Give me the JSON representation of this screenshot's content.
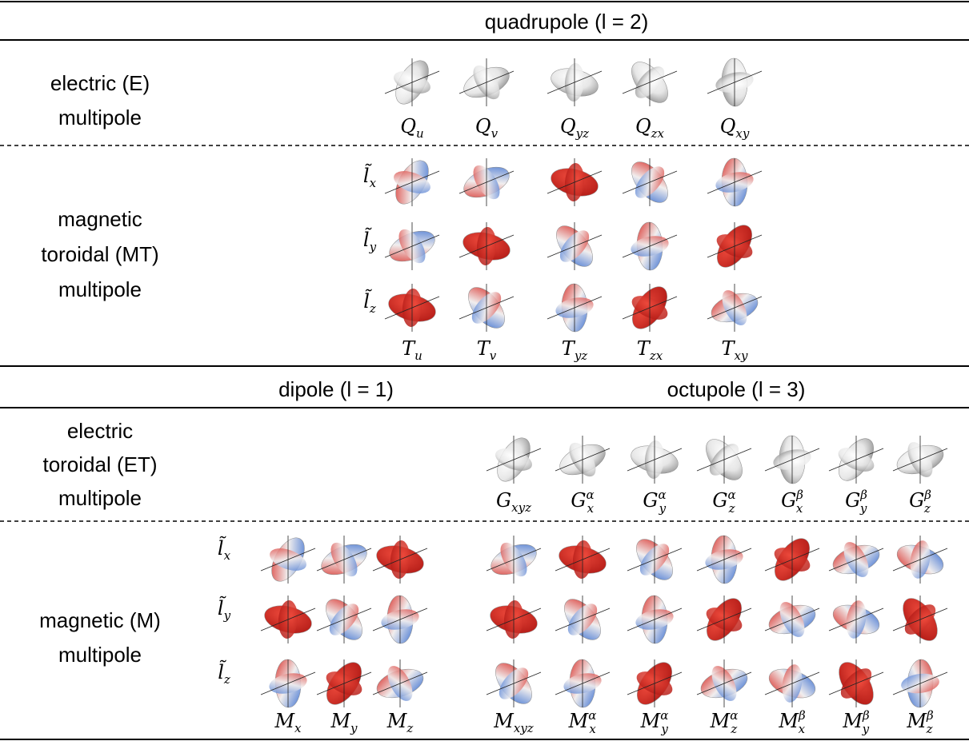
{
  "header": {
    "quadrupole": "quadrupole (l = 2)",
    "dipole": "dipole (l = 1)",
    "octupole": "octupole (l = 3)"
  },
  "electric": {
    "label": [
      "electric (E)",
      "multipole"
    ],
    "symbols": [
      {
        "symbol": "Q",
        "sub": "u"
      },
      {
        "symbol": "Q",
        "sub": "v"
      },
      {
        "symbol": "Q",
        "sub": "yz"
      },
      {
        "symbol": "Q",
        "sub": "zx"
      },
      {
        "symbol": "Q",
        "sub": "xy"
      }
    ]
  },
  "magnetic_toroidal": {
    "label": [
      "magnetic",
      "toroidal (MT)",
      "multipole"
    ],
    "rows": [
      {
        "symbol": "l̃",
        "sub": "x"
      },
      {
        "symbol": "l̃",
        "sub": "y"
      },
      {
        "symbol": "l̃",
        "sub": "z"
      }
    ],
    "symbols": [
      {
        "symbol": "T",
        "sub": "u"
      },
      {
        "symbol": "T",
        "sub": "v"
      },
      {
        "symbol": "T",
        "sub": "yz"
      },
      {
        "symbol": "T",
        "sub": "zx"
      },
      {
        "symbol": "T",
        "sub": "xy"
      }
    ]
  },
  "electric_toroidal": {
    "label": [
      "electric",
      "toroidal (ET)",
      "multipole"
    ],
    "symbols": [
      {
        "symbol": "G",
        "sub": "xyz"
      },
      {
        "symbol": "G",
        "sub": "x",
        "sup": "α"
      },
      {
        "symbol": "G",
        "sub": "y",
        "sup": "α"
      },
      {
        "symbol": "G",
        "sub": "z",
        "sup": "α"
      },
      {
        "symbol": "G",
        "sub": "x",
        "sup": "β"
      },
      {
        "symbol": "G",
        "sub": "y",
        "sup": "β"
      },
      {
        "symbol": "G",
        "sub": "z",
        "sup": "β"
      }
    ]
  },
  "magnetic": {
    "label": [
      "magnetic (M)",
      "multipole"
    ],
    "rows": [
      {
        "symbol": "l̃",
        "sub": "x"
      },
      {
        "symbol": "l̃",
        "sub": "y"
      },
      {
        "symbol": "l̃",
        "sub": "z"
      }
    ],
    "dipole_symbols": [
      {
        "symbol": "M",
        "sub": "x"
      },
      {
        "symbol": "M",
        "sub": "y"
      },
      {
        "symbol": "M",
        "sub": "z"
      }
    ],
    "octupole_symbols": [
      {
        "symbol": "M",
        "sub": "xyz"
      },
      {
        "symbol": "M",
        "sub": "x",
        "sup": "α"
      },
      {
        "symbol": "M",
        "sub": "y",
        "sup": "α"
      },
      {
        "symbol": "M",
        "sub": "z",
        "sup": "α"
      },
      {
        "symbol": "M",
        "sub": "x",
        "sup": "β"
      },
      {
        "symbol": "M",
        "sub": "y",
        "sup": "β"
      },
      {
        "symbol": "M",
        "sub": "z",
        "sup": "β"
      }
    ]
  }
}
